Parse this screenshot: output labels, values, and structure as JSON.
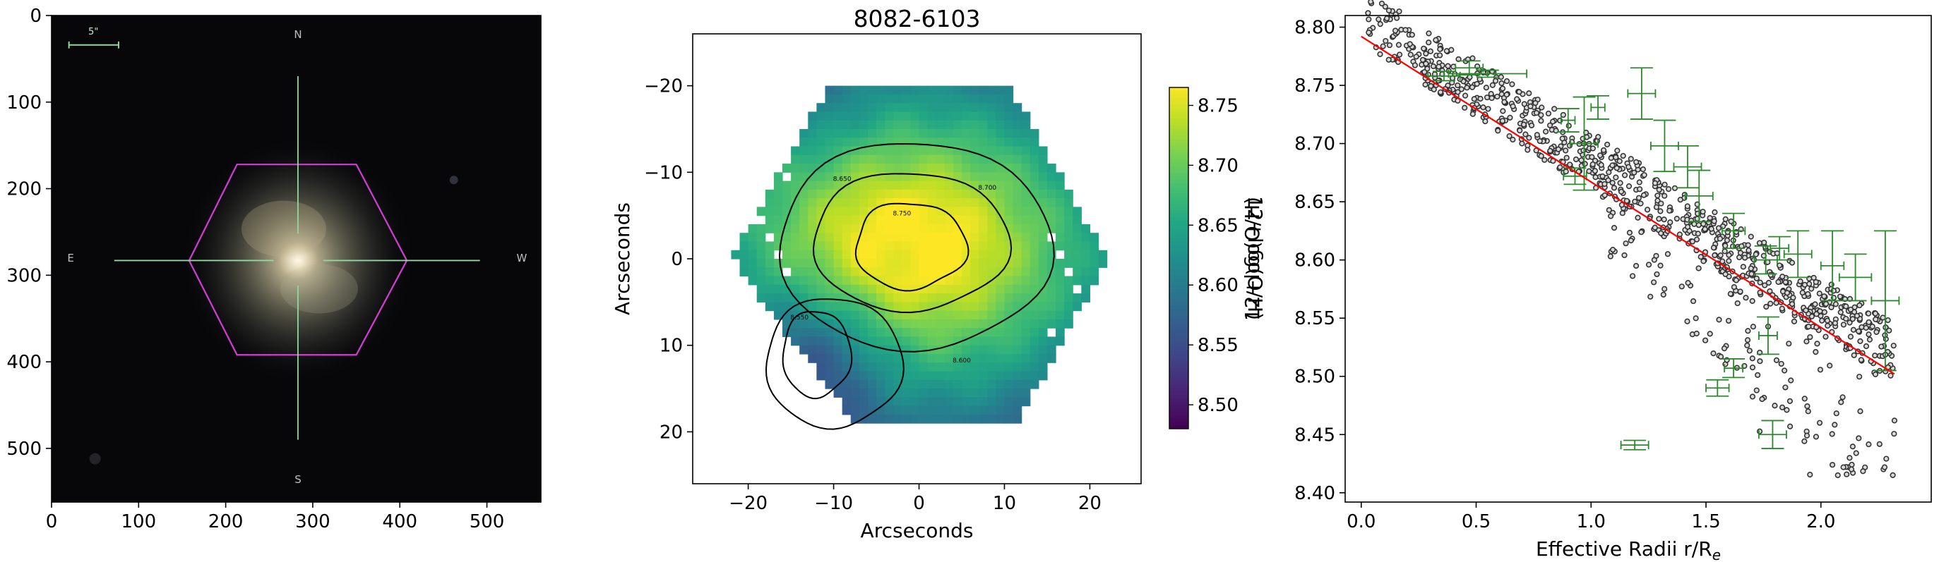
{
  "chart_data": [
    {
      "type": "image",
      "panel": "sdss-image",
      "xlim": [
        0,
        562
      ],
      "ylim": [
        562,
        0
      ],
      "x_ticks": [
        0,
        100,
        200,
        300,
        400,
        500
      ],
      "y_ticks": [
        0,
        100,
        200,
        300,
        400,
        500
      ],
      "x_tick_labels": [
        "0",
        "100",
        "200",
        "300",
        "400",
        "500"
      ],
      "y_tick_labels": [
        "0",
        "100",
        "200",
        "300",
        "400",
        "500"
      ],
      "compass": {
        "north": "N",
        "south": "S",
        "east": "E",
        "west": "W"
      },
      "scale_bar_label": "5\"",
      "ifu_hexagon_vertices": [
        [
          213,
          172
        ],
        [
          350,
          172
        ],
        [
          408,
          283
        ],
        [
          350,
          392
        ],
        [
          213,
          392
        ],
        [
          158,
          283
        ]
      ],
      "center": [
        283,
        283
      ],
      "colors": {
        "background": "#07070a",
        "hexagon": "#d43cd6",
        "crosshair": "#8fd9a0",
        "galaxy_core": "#e8dcc0"
      }
    },
    {
      "type": "heatmap",
      "panel": "metallicity-map",
      "title": "8082-6103",
      "xlabel": "Arcseconds",
      "ylabel": "Arcseconds",
      "xlim": [
        -26.5,
        26
      ],
      "ylim": [
        -26,
        26
      ],
      "y_inverted": true,
      "x_ticks": [
        -20,
        -10,
        0,
        10,
        20
      ],
      "y_ticks": [
        -20,
        -10,
        0,
        10,
        20
      ],
      "x_tick_labels": [
        "−20",
        "−10",
        "0",
        "10",
        "20"
      ],
      "y_tick_labels": [
        "−20",
        "−10",
        "0",
        "10",
        "20"
      ],
      "colorbar": {
        "label": "12+log(O/H)",
        "min": 8.48,
        "max": 8.765,
        "ticks": [
          8.5,
          8.55,
          8.6,
          8.65,
          8.7,
          8.75
        ],
        "tick_labels": [
          "8.50",
          "8.55",
          "8.60",
          "8.65",
          "8.70",
          "8.75"
        ],
        "colormap": "viridis"
      },
      "hexagon_vertices": [
        [
          -10.5,
          -20
        ],
        [
          10.5,
          -20
        ],
        [
          22,
          0
        ],
        [
          11.5,
          19
        ],
        [
          -7.5,
          19
        ],
        [
          -22,
          0
        ]
      ],
      "peak_center": [
        -1,
        -1.5
      ],
      "low_region_center": [
        -12,
        11
      ],
      "contour_levels": [
        8.55,
        8.6,
        8.65,
        8.7,
        8.75
      ],
      "contour_tick_labels": [
        "8.750",
        "8.700",
        "8.650",
        "8.600",
        "8.550"
      ]
    },
    {
      "type": "scatter",
      "panel": "gradient",
      "xlabel": "Effective Radii r/R",
      "xlabel_subscript": "e",
      "ylabel": "12+log(O/H)",
      "xlim": [
        -0.07,
        2.48
      ],
      "ylim": [
        8.392,
        8.81
      ],
      "x_ticks": [
        0.0,
        0.5,
        1.0,
        1.5,
        2.0
      ],
      "x_tick_labels": [
        "0.0",
        "0.5",
        "1.0",
        "1.5",
        "2.0"
      ],
      "y_ticks": [
        8.4,
        8.45,
        8.5,
        8.55,
        8.6,
        8.65,
        8.7,
        8.75,
        8.8
      ],
      "y_tick_labels": [
        "8.40",
        "8.45",
        "8.50",
        "8.55",
        "8.60",
        "8.65",
        "8.70",
        "8.75",
        "8.80"
      ],
      "fit_line": {
        "x": [
          0.0,
          2.32
        ],
        "y": [
          8.792,
          8.502
        ],
        "color": "#ff0000"
      },
      "scatter_color": "#333333",
      "n_points_approx": 950,
      "errorbars": [
        {
          "x": 0.36,
          "y": 8.758,
          "xerr": 0.07,
          "yerr": 0.004
        },
        {
          "x": 0.47,
          "y": 8.765,
          "xerr": 0.06,
          "yerr": 0.006
        },
        {
          "x": 0.55,
          "y": 8.76,
          "xerr": 0.17,
          "yerr": 0.003
        },
        {
          "x": 0.9,
          "y": 8.72,
          "xerr": 0.03,
          "yerr": 0.01
        },
        {
          "x": 0.97,
          "y": 8.7,
          "xerr": 0.06,
          "yerr": 0.04
        },
        {
          "x": 1.03,
          "y": 8.731,
          "xerr": 0.03,
          "yerr": 0.01
        },
        {
          "x": 0.93,
          "y": 8.672,
          "xerr": 0.05,
          "yerr": 0.007
        },
        {
          "x": 1.22,
          "y": 8.743,
          "xerr": 0.06,
          "yerr": 0.022
        },
        {
          "x": 1.32,
          "y": 8.698,
          "xerr": 0.06,
          "yerr": 0.022
        },
        {
          "x": 1.42,
          "y": 8.68,
          "xerr": 0.06,
          "yerr": 0.018
        },
        {
          "x": 1.47,
          "y": 8.655,
          "xerr": 0.06,
          "yerr": 0.022
        },
        {
          "x": 1.62,
          "y": 8.625,
          "xerr": 0.05,
          "yerr": 0.015
        },
        {
          "x": 1.76,
          "y": 8.6,
          "xerr": 0.05,
          "yerr": 0.012
        },
        {
          "x": 1.82,
          "y": 8.61,
          "xerr": 0.04,
          "yerr": 0.01
        },
        {
          "x": 1.9,
          "y": 8.605,
          "xerr": 0.06,
          "yerr": 0.02
        },
        {
          "x": 2.05,
          "y": 8.595,
          "xerr": 0.05,
          "yerr": 0.03
        },
        {
          "x": 2.15,
          "y": 8.585,
          "xerr": 0.07,
          "yerr": 0.02
        },
        {
          "x": 2.28,
          "y": 8.565,
          "xerr": 0.06,
          "yerr": 0.06
        },
        {
          "x": 1.77,
          "y": 8.535,
          "xerr": 0.04,
          "yerr": 0.016
        },
        {
          "x": 1.62,
          "y": 8.507,
          "xerr": 0.04,
          "yerr": 0.008
        },
        {
          "x": 1.55,
          "y": 8.49,
          "xerr": 0.05,
          "yerr": 0.007
        },
        {
          "x": 1.79,
          "y": 8.45,
          "xerr": 0.06,
          "yerr": 0.012
        },
        {
          "x": 1.19,
          "y": 8.441,
          "xerr": 0.06,
          "yerr": 0.004
        }
      ],
      "errorbar_color": "#2a8a2a"
    }
  ]
}
